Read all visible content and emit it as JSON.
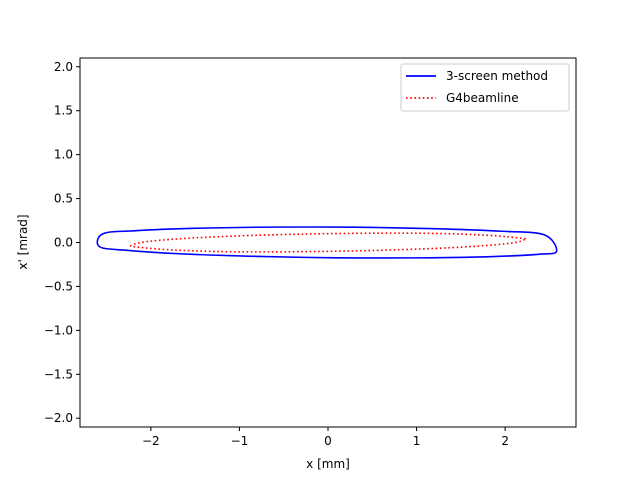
{
  "chart_data": {
    "type": "line",
    "xlabel": "x [mm]",
    "ylabel": "x' [mrad]",
    "xlim": [
      -2.8,
      2.8
    ],
    "ylim": [
      -2.1,
      2.1
    ],
    "xticks": [
      -2,
      -1,
      0,
      1,
      2
    ],
    "xtick_labels": [
      "−2",
      "−1",
      "0",
      "1",
      "2"
    ],
    "yticks": [
      -2.0,
      -1.5,
      -1.0,
      -0.5,
      0.0,
      0.5,
      1.0,
      1.5,
      2.0
    ],
    "ytick_labels": [
      "−2.0",
      "−1.5",
      "−1.0",
      "−0.5",
      "0.0",
      "0.5",
      "1.0",
      "1.5",
      "2.0"
    ],
    "grid": false,
    "legend_position": "top-right",
    "series": [
      {
        "name": "3-screen method",
        "color": "#0000ff",
        "style": "solid",
        "x": [
          2.58,
          2.38,
          1.83,
          1.02,
          0.09,
          -0.86,
          -1.68,
          -2.28,
          -2.58,
          -2.54,
          -2.17,
          -1.52,
          -0.67,
          0.28,
          1.2,
          1.96,
          2.44,
          2.58
        ],
        "y": [
          -0.1,
          -0.134,
          -0.161,
          -0.175,
          -0.174,
          -0.157,
          -0.128,
          -0.088,
          -0.047,
          0.1,
          0.134,
          0.161,
          0.175,
          0.174,
          0.157,
          0.128,
          0.088,
          -0.1
        ]
      },
      {
        "name": "G4beamline",
        "color": "#ff0000",
        "style": "dotted",
        "x": [
          2.22,
          2.08,
          1.67,
          1.04,
          0.27,
          -0.52,
          -1.22,
          -1.82,
          -2.17,
          -2.22,
          -2.08,
          -1.67,
          -1.04,
          -0.27,
          0.52,
          1.22,
          1.82,
          2.17,
          2.22
        ],
        "y": [
          0.035,
          -0.005,
          -0.043,
          -0.074,
          -0.096,
          -0.106,
          -0.103,
          -0.081,
          -0.05,
          -0.035,
          0.005,
          0.043,
          0.074,
          0.096,
          0.106,
          0.103,
          0.081,
          0.05,
          0.035
        ]
      }
    ]
  }
}
